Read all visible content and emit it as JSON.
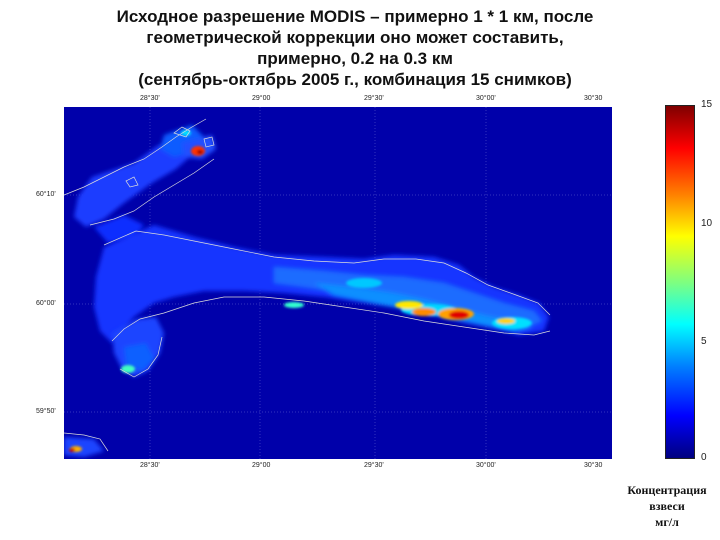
{
  "title": {
    "line1": "Исходное разрешение MODIS – примерно 1 * 1 км, после",
    "line2": "геометрической коррекции оно может составить,",
    "line3": "примерно, 0.2 на 0.3 км",
    "line4": "(сентябрь-октябрь 2005 г., комбинация 15 снимков)"
  },
  "map": {
    "lon_labels": [
      "28°30'",
      "29°00",
      "29°30'",
      "30°00'",
      "30°30"
    ],
    "lat_labels": [
      "60°10'",
      "60°00'",
      "59°50'"
    ],
    "background_color": "#0000aa",
    "coastline_color": "#dcdcdc"
  },
  "colorbar": {
    "labels": [
      "15",
      "10",
      "5",
      "0"
    ],
    "min": 0,
    "max": 15,
    "colormap": "jet"
  },
  "legend": {
    "line1": "Концентрация",
    "line2": "взвеси",
    "line3": "мг/л"
  }
}
